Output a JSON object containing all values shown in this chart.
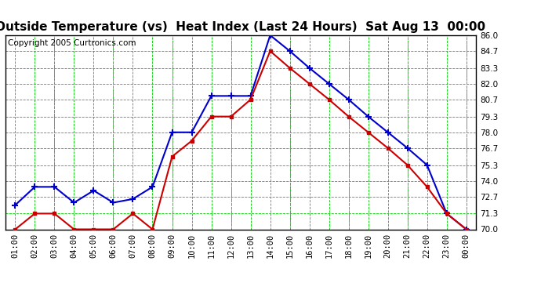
{
  "title": "Outside Temperature (vs)  Heat Index (Last 24 Hours)  Sat Aug 13  00:00",
  "copyright": "Copyright 2005 Curtronics.com",
  "x_labels": [
    "01:00",
    "02:00",
    "03:00",
    "04:00",
    "05:00",
    "06:00",
    "07:00",
    "08:00",
    "09:00",
    "10:00",
    "11:00",
    "12:00",
    "13:00",
    "14:00",
    "15:00",
    "16:00",
    "17:00",
    "18:00",
    "19:00",
    "20:00",
    "21:00",
    "22:00",
    "23:00",
    "00:00"
  ],
  "blue_data": [
    72.0,
    73.5,
    73.5,
    72.2,
    73.2,
    72.2,
    72.5,
    73.5,
    78.0,
    78.0,
    81.0,
    81.0,
    81.0,
    86.0,
    84.7,
    83.3,
    82.0,
    80.7,
    79.3,
    78.0,
    76.7,
    75.3,
    71.3,
    70.0
  ],
  "red_data": [
    70.0,
    71.3,
    71.3,
    70.0,
    70.0,
    70.0,
    71.3,
    70.0,
    76.0,
    77.3,
    79.3,
    79.3,
    80.7,
    84.7,
    83.3,
    82.0,
    80.7,
    79.3,
    78.0,
    76.7,
    75.3,
    73.5,
    71.3,
    70.0
  ],
  "y_ticks": [
    70.0,
    71.3,
    72.7,
    74.0,
    75.3,
    76.7,
    78.0,
    79.3,
    80.7,
    82.0,
    83.3,
    84.7,
    86.0
  ],
  "y_min": 70.0,
  "y_max": 86.0,
  "blue_color": "#0000cc",
  "red_color": "#cc0000",
  "plot_bg_color": "#ffffff",
  "grid_color": "#00cc00",
  "dash_color": "#888888",
  "title_fontsize": 11,
  "copyright_fontsize": 7.5,
  "tick_fontsize": 7.5,
  "dash_x_positions": [
    2,
    5,
    8,
    11,
    14,
    17,
    20,
    23
  ]
}
